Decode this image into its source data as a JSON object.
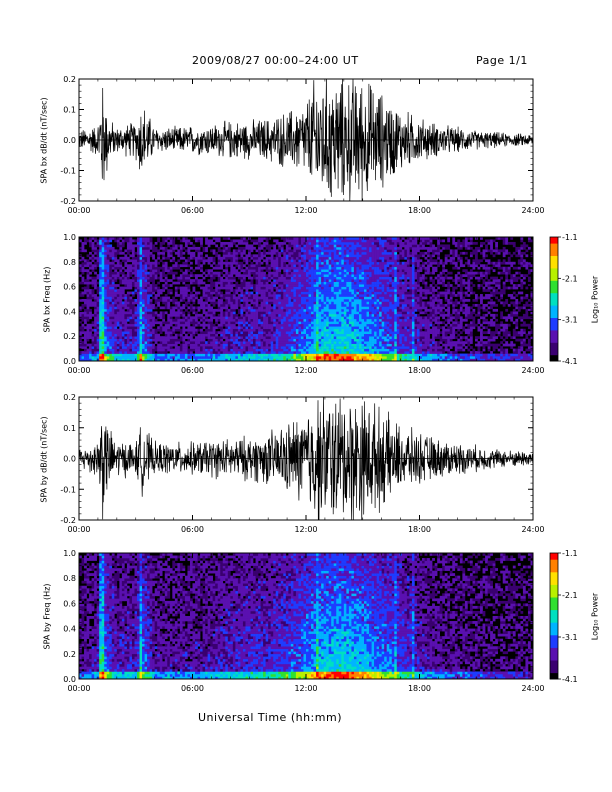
{
  "header": {
    "title": "2009/08/27  00:00–24:00 UT",
    "page": "Page 1/1"
  },
  "xaxis_title": "Universal Time (hh:mm)",
  "colorbar": {
    "label": "Log₁₀ Power",
    "ticks": [
      "-1.1",
      "-2.1",
      "-3.1",
      "-4.1"
    ],
    "colors": [
      "#000000",
      "#3a0070",
      "#5a10b0",
      "#1e3cff",
      "#00b4ff",
      "#00e0c0",
      "#30e030",
      "#b8f000",
      "#ffe000",
      "#ff8000",
      "#ff0000"
    ]
  },
  "chart_data": [
    {
      "type": "line",
      "title": "",
      "ylabel": "SPA bx dB/dt (nT/sec)",
      "xlabel": "",
      "xlim": [
        0,
        24
      ],
      "ylim": [
        -0.2,
        0.2
      ],
      "xticks": [
        "00:00",
        "06:00",
        "12:00",
        "18:00",
        "24:00"
      ],
      "yticks": [
        "-0.2",
        "-0.1",
        "0.0",
        "0.1",
        "0.2"
      ],
      "envelope": {
        "hours": [
          0,
          1,
          1.2,
          1.6,
          2,
          3,
          3.3,
          4,
          5,
          6,
          7,
          8,
          9,
          10,
          11,
          12,
          12.5,
          13,
          14,
          15,
          16,
          17,
          18,
          19,
          20,
          21,
          22,
          23,
          24
        ],
        "amplitude": [
          0.03,
          0.05,
          0.2,
          0.07,
          0.04,
          0.06,
          0.13,
          0.04,
          0.04,
          0.045,
          0.05,
          0.06,
          0.06,
          0.07,
          0.09,
          0.12,
          0.2,
          0.2,
          0.2,
          0.2,
          0.15,
          0.1,
          0.07,
          0.05,
          0.04,
          0.03,
          0.025,
          0.02,
          0.02
        ]
      }
    },
    {
      "type": "heatmap",
      "title": "",
      "ylabel": "SPA bx Freq (Hz)",
      "xlabel": "",
      "xlim": [
        0,
        24
      ],
      "ylim": [
        0,
        1.0
      ],
      "zlim": [
        -4.1,
        -1.1
      ],
      "xticks": [
        "00:00",
        "06:00",
        "12:00",
        "18:00",
        "24:00"
      ],
      "yticks": [
        "0.0",
        "0.2",
        "0.4",
        "0.6",
        "0.8",
        "1.0"
      ],
      "activity": {
        "hours": [
          0,
          1,
          1.2,
          1.6,
          2,
          3,
          3.3,
          4,
          6,
          8,
          10,
          11,
          12,
          13,
          14,
          15,
          16,
          17,
          18,
          20,
          22,
          24
        ],
        "level": [
          0.15,
          0.3,
          0.9,
          0.5,
          0.3,
          0.35,
          0.7,
          0.2,
          0.2,
          0.3,
          0.35,
          0.45,
          0.65,
          0.95,
          1.0,
          0.85,
          0.65,
          0.45,
          0.3,
          0.15,
          0.1,
          0.05
        ]
      }
    },
    {
      "type": "line",
      "title": "",
      "ylabel": "SPA by dB/dt (nT/sec)",
      "xlabel": "",
      "xlim": [
        0,
        24
      ],
      "ylim": [
        -0.2,
        0.2
      ],
      "xticks": [
        "00:00",
        "06:00",
        "12:00",
        "18:00",
        "24:00"
      ],
      "yticks": [
        "-0.2",
        "-0.1",
        "0.0",
        "0.1",
        "0.2"
      ],
      "envelope": {
        "hours": [
          0,
          1,
          1.2,
          1.6,
          2,
          3,
          3.3,
          4,
          5,
          6,
          7,
          8,
          9,
          10,
          11,
          12,
          12.5,
          13,
          14,
          15,
          16,
          17,
          18,
          19,
          20,
          21,
          22,
          23,
          24
        ],
        "amplitude": [
          0.03,
          0.06,
          0.2,
          0.09,
          0.06,
          0.05,
          0.11,
          0.05,
          0.05,
          0.05,
          0.06,
          0.06,
          0.07,
          0.08,
          0.11,
          0.15,
          0.2,
          0.2,
          0.2,
          0.2,
          0.15,
          0.1,
          0.08,
          0.06,
          0.05,
          0.04,
          0.03,
          0.025,
          0.025
        ]
      }
    },
    {
      "type": "heatmap",
      "title": "",
      "ylabel": "SPA by Freq (Hz)",
      "xlabel": "",
      "xlim": [
        0,
        24
      ],
      "ylim": [
        0,
        1.0
      ],
      "zlim": [
        -4.1,
        -1.1
      ],
      "xticks": [
        "00:00",
        "06:00",
        "12:00",
        "18:00",
        "24:00"
      ],
      "yticks": [
        "0.0",
        "0.2",
        "0.4",
        "0.6",
        "0.8",
        "1.0"
      ],
      "activity": {
        "hours": [
          0,
          1,
          1.2,
          1.6,
          2,
          3,
          3.3,
          4,
          6,
          8,
          10,
          11,
          12,
          13,
          14,
          15,
          16,
          17,
          18,
          20,
          22,
          24
        ],
        "level": [
          0.15,
          0.3,
          0.9,
          0.5,
          0.3,
          0.35,
          0.7,
          0.25,
          0.25,
          0.35,
          0.4,
          0.5,
          0.7,
          0.95,
          1.0,
          0.85,
          0.7,
          0.5,
          0.3,
          0.15,
          0.1,
          0.05
        ]
      }
    }
  ]
}
